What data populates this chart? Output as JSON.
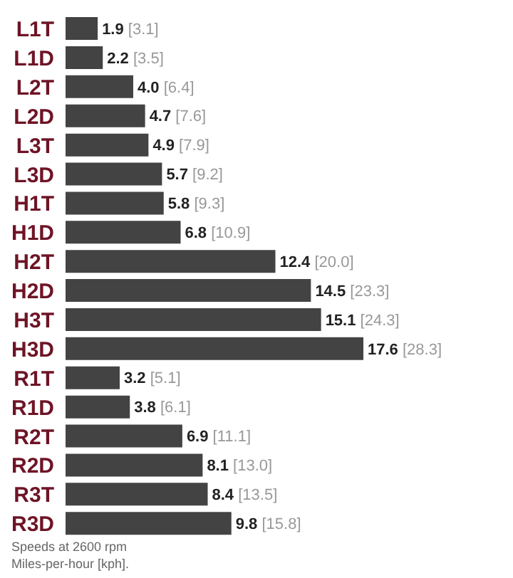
{
  "chart_data": {
    "type": "bar",
    "orientation": "horizontal",
    "categories": [
      "L1T",
      "L1D",
      "L2T",
      "L2D",
      "L3T",
      "L3D",
      "H1T",
      "H1D",
      "H2T",
      "H2D",
      "H3T",
      "H3D",
      "R1T",
      "R1D",
      "R2T",
      "R2D",
      "R3T",
      "R3D"
    ],
    "values": [
      1.9,
      2.2,
      4.0,
      4.7,
      4.9,
      5.7,
      5.8,
      6.8,
      12.4,
      14.5,
      15.1,
      17.6,
      3.2,
      3.8,
      6.9,
      8.1,
      8.4,
      9.8
    ],
    "value_labels": [
      "1.9 [3.1]",
      "2.2 [3.5]",
      "4.0 [6.4]",
      "4.7 [7.6]",
      "4.9 [7.9]",
      "5.7 [9.2]",
      "5.8 [9.3]",
      "6.8 [10.9]",
      "12.4 [20.0]",
      "14.5 [23.3]",
      "15.1 [24.3]",
      "17.6 [28.3]",
      "3.2 [5.1]",
      "3.8 [6.1]",
      "6.9 [11.1]",
      "8.1 [13.0]",
      "8.4 [13.5]",
      "9.8 [15.8]"
    ],
    "color": "#434343",
    "annotations": [
      "Speeds at 2600 rpm",
      "Miles-per-hour [kph]."
    ]
  }
}
